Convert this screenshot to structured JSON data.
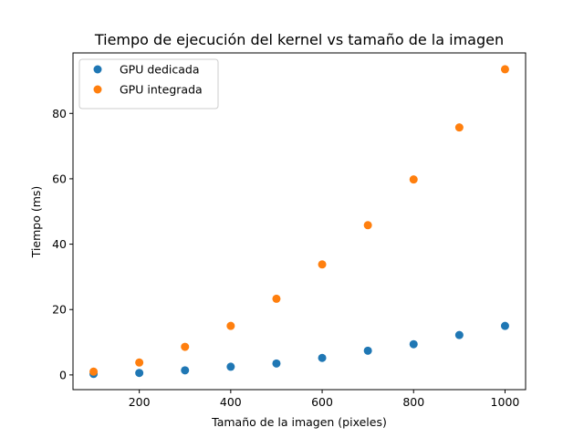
{
  "chart_data": {
    "type": "scatter",
    "title": "Tiempo de ejecución del kernel vs tamaño de la imagen",
    "xlabel": "Tamaño de la imagen (pixeles)",
    "ylabel": "Tiempo (ms)",
    "xlim": [
      55,
      1045
    ],
    "ylim": [
      -4.5,
      98.5
    ],
    "xticks": [
      200,
      400,
      600,
      800,
      1000
    ],
    "yticks": [
      0,
      20,
      40,
      60,
      80
    ],
    "grid": false,
    "legend_position": "top-left",
    "series": [
      {
        "name": "GPU dedicada",
        "color": "#1f77b4",
        "x": [
          100,
          200,
          300,
          400,
          500,
          600,
          700,
          800,
          900,
          1000
        ],
        "y": [
          0.3,
          0.6,
          1.4,
          2.5,
          3.5,
          5.2,
          7.4,
          9.4,
          12.2,
          15.0
        ]
      },
      {
        "name": "GPU integrada",
        "color": "#ff7f0e",
        "x": [
          100,
          200,
          300,
          400,
          500,
          600,
          700,
          800,
          900,
          1000
        ],
        "y": [
          1.0,
          3.8,
          8.6,
          15.0,
          23.3,
          33.8,
          45.8,
          59.8,
          75.7,
          93.5
        ]
      }
    ]
  }
}
